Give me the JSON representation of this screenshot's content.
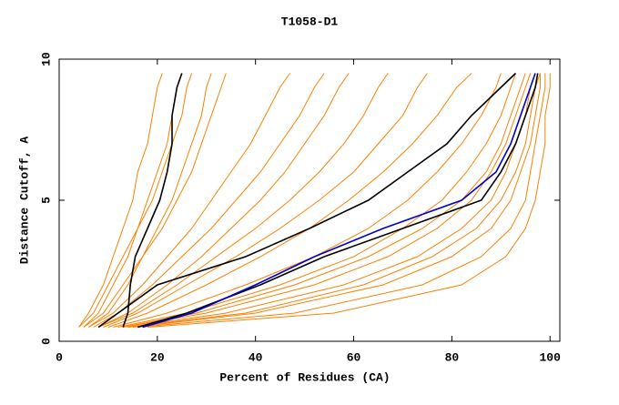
{
  "chart_data": {
    "type": "line",
    "title": "T1058-D1",
    "x_label": "Percent of Residues (CA)",
    "y_label": "Distance Cutoff, A",
    "xlim": [
      0,
      102
    ],
    "ylim": [
      0,
      10
    ],
    "xticks": [
      0,
      20,
      40,
      60,
      80,
      100
    ],
    "yticks": [
      0,
      5,
      10
    ],
    "grid": false,
    "series": [
      {
        "color": "#ff8000",
        "x": [
          4,
          6,
          9,
          11,
          13,
          15,
          16,
          18,
          19,
          20,
          21
        ],
        "values": [
          0.5,
          1,
          2,
          3,
          4,
          5,
          6,
          7,
          8,
          9,
          9.5
        ]
      },
      {
        "color": "#ff8000",
        "x": [
          5,
          8,
          11,
          14,
          16,
          18,
          20,
          22,
          23,
          24,
          25
        ],
        "values": [
          0.5,
          1,
          2,
          3,
          4,
          5,
          6,
          7,
          8,
          9,
          9.5
        ]
      },
      {
        "color": "#ff8000",
        "x": [
          4,
          7,
          10,
          13,
          16,
          19,
          21,
          23,
          25,
          26,
          27
        ],
        "values": [
          0.5,
          1,
          2,
          3,
          4,
          5,
          6,
          7,
          8,
          9,
          9.5
        ]
      },
      {
        "color": "#ff8000",
        "x": [
          6,
          10,
          14,
          17,
          20,
          23,
          25,
          27,
          29,
          30,
          31
        ],
        "values": [
          0.5,
          1,
          2,
          3,
          4,
          5,
          6,
          7,
          8,
          9,
          9.5
        ]
      },
      {
        "color": "#ff8000",
        "x": [
          5,
          9,
          13,
          17,
          21,
          24,
          27,
          29,
          31,
          33,
          34
        ],
        "values": [
          0.5,
          1,
          2,
          3,
          4,
          5,
          6,
          7,
          8,
          9,
          9.5
        ]
      },
      {
        "color": "#ff8000",
        "x": [
          6,
          11,
          17,
          22,
          27,
          31,
          35,
          39,
          42,
          45,
          47
        ],
        "values": [
          0.5,
          1,
          2,
          3,
          4,
          5,
          6,
          7,
          8,
          9,
          9.5
        ]
      },
      {
        "color": "#ff8000",
        "x": [
          7,
          12,
          19,
          25,
          31,
          36,
          41,
          45,
          49,
          52,
          54
        ],
        "values": [
          0.5,
          1,
          2,
          3,
          4,
          5,
          6,
          7,
          8,
          9,
          9.5
        ]
      },
      {
        "color": "#ff8000",
        "x": [
          8,
          14,
          22,
          29,
          35,
          41,
          46,
          50,
          54,
          57,
          59
        ],
        "values": [
          0.5,
          1,
          2,
          3,
          4,
          5,
          6,
          7,
          8,
          9,
          9.5
        ]
      },
      {
        "color": "#ff8000",
        "x": [
          8,
          15,
          24,
          32,
          40,
          47,
          53,
          58,
          62,
          65,
          67
        ],
        "values": [
          0.5,
          1,
          2,
          3,
          4,
          5,
          6,
          7,
          8,
          9,
          9.5
        ]
      },
      {
        "color": "#ff8000",
        "x": [
          9,
          16,
          26,
          36,
          45,
          53,
          60,
          65,
          70,
          73,
          75
        ],
        "values": [
          0.5,
          1,
          2,
          3,
          4,
          5,
          6,
          7,
          8,
          9,
          9.5
        ]
      },
      {
        "color": "#ff8000",
        "x": [
          10,
          18,
          30,
          41,
          51,
          59,
          66,
          72,
          77,
          81,
          84
        ],
        "values": [
          0.5,
          1,
          2,
          3,
          4,
          5,
          6,
          7,
          8,
          9,
          9.5
        ]
      },
      {
        "color": "#ff8000",
        "x": [
          11,
          22,
          38,
          52,
          63,
          71,
          77,
          82,
          86,
          89,
          90
        ],
        "values": [
          0.5,
          1,
          2,
          3,
          4,
          5,
          6,
          7,
          8,
          9,
          9.5
        ]
      },
      {
        "color": "#ff8000",
        "x": [
          12,
          26,
          45,
          60,
          70,
          78,
          83,
          87,
          90,
          92,
          93
        ],
        "values": [
          0.5,
          1,
          2,
          3,
          4,
          5,
          6,
          7,
          8,
          9,
          9.5
        ]
      },
      {
        "color": "#ff8000",
        "x": [
          13,
          30,
          52,
          67,
          77,
          84,
          88,
          91,
          93,
          95,
          96
        ],
        "values": [
          0.5,
          1,
          2,
          3,
          4,
          5,
          6,
          7,
          8,
          9,
          9.5
        ]
      },
      {
        "color": "#ff8000",
        "x": [
          14,
          34,
          58,
          73,
          82,
          88,
          91,
          93,
          95,
          96,
          97
        ],
        "values": [
          0.5,
          1,
          2,
          3,
          4,
          5,
          6,
          7,
          8,
          9,
          9.5
        ]
      },
      {
        "color": "#ff8000",
        "x": [
          15,
          40,
          66,
          80,
          88,
          92,
          94,
          96,
          97,
          98,
          98
        ],
        "values": [
          0.5,
          1,
          2,
          3,
          4,
          5,
          6,
          7,
          8,
          9,
          9.5
        ]
      },
      {
        "color": "#ff8000",
        "x": [
          16,
          48,
          74,
          86,
          92,
          95,
          96,
          97,
          98,
          99,
          99
        ],
        "values": [
          0.5,
          1,
          2,
          3,
          4,
          5,
          6,
          7,
          8,
          9,
          9.5
        ]
      },
      {
        "color": "#ff8000",
        "x": [
          18,
          56,
          82,
          91,
          95,
          97,
          98,
          99,
          99,
          100,
          100
        ],
        "values": [
          0.5,
          1,
          2,
          3,
          4,
          5,
          6,
          7,
          8,
          9,
          9.5
        ]
      },
      {
        "color": "#ff8000",
        "x": [
          14,
          38,
          62,
          76,
          85,
          90,
          93,
          95,
          96,
          97,
          98
        ],
        "values": [
          0.5,
          1,
          2,
          3,
          4,
          5,
          6,
          7,
          8,
          9,
          9.5
        ]
      },
      {
        "color": "#ff8000",
        "x": [
          13,
          28,
          48,
          63,
          74,
          82,
          87,
          90,
          92,
          94,
          95
        ],
        "values": [
          0.5,
          1,
          2,
          3,
          4,
          5,
          6,
          7,
          8,
          9,
          9.5
        ]
      },
      {
        "color": "#000000",
        "x": [
          13,
          14,
          14.5,
          15.5,
          18,
          20.5,
          22,
          23,
          23,
          24,
          25
        ],
        "values": [
          0.5,
          1,
          2,
          3,
          4,
          5,
          6,
          7,
          8,
          9,
          9.5
        ]
      },
      {
        "color": "#000000",
        "x": [
          8,
          12,
          20,
          38,
          51,
          63,
          71,
          79,
          84,
          90,
          93
        ],
        "values": [
          0.5,
          1,
          2,
          3,
          4,
          5,
          6,
          7,
          8,
          9,
          9.5
        ]
      },
      {
        "color": "#000000",
        "x": [
          16,
          26,
          41,
          54,
          70,
          86,
          90,
          93,
          95,
          97,
          97.5
        ],
        "values": [
          0.5,
          1,
          2,
          3,
          4,
          5,
          6,
          7,
          8,
          9,
          9.5
        ]
      },
      {
        "color": "#0000cc",
        "x": [
          17,
          27,
          40,
          52,
          66,
          82,
          89,
          92,
          94,
          96,
          97
        ],
        "values": [
          0.5,
          1,
          2,
          3,
          4,
          5,
          6,
          7,
          8,
          9,
          9.5
        ]
      }
    ]
  }
}
